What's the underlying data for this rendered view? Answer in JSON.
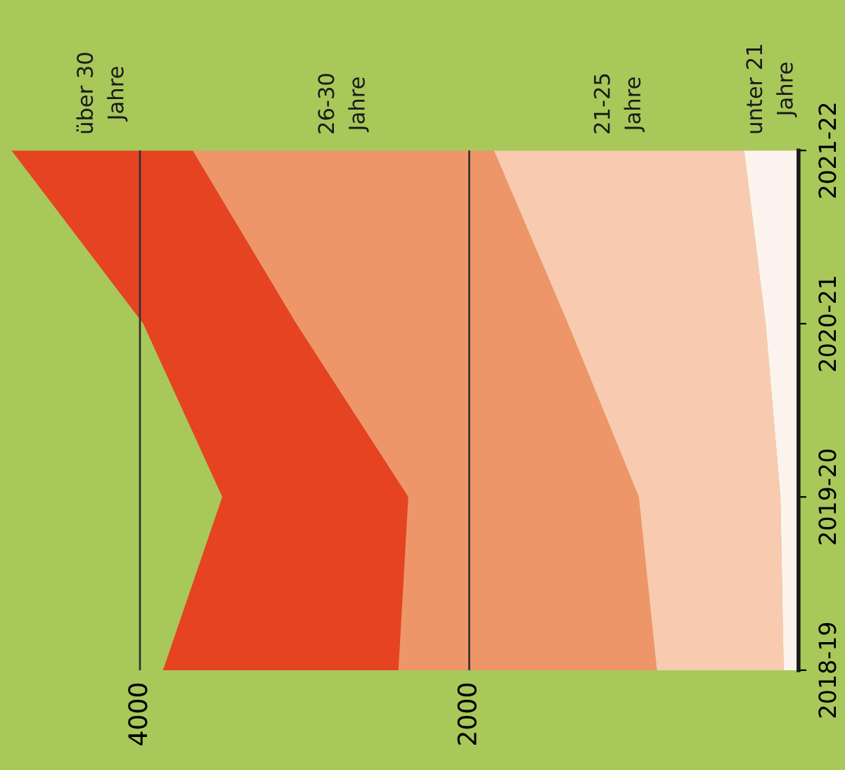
{
  "chart_data": {
    "type": "area",
    "stacked": true,
    "orientation": "horizontal",
    "categories": [
      "2021-22",
      "2020-21",
      "2019-20",
      "2018-19"
    ],
    "series": [
      {
        "name": "unter 21\nJahre",
        "color": "#fdf3ee",
        "values": [
          330,
          200,
          110,
          90
        ]
      },
      {
        "name": "21-25\nJahre",
        "color": "#f8cbb0",
        "values": [
          1520,
          1200,
          860,
          770
        ]
      },
      {
        "name": "26-30\nJahre",
        "color": "#ef956a",
        "values": [
          1830,
          1650,
          1400,
          1570
        ]
      },
      {
        "name": "über 30\nJahre",
        "color": "#e64322",
        "values": [
          1100,
          930,
          1130,
          1430
        ]
      }
    ],
    "xlim": [
      4850,
      0
    ],
    "xticks": [
      2000,
      4000
    ],
    "grid": "x",
    "legend": false
  }
}
